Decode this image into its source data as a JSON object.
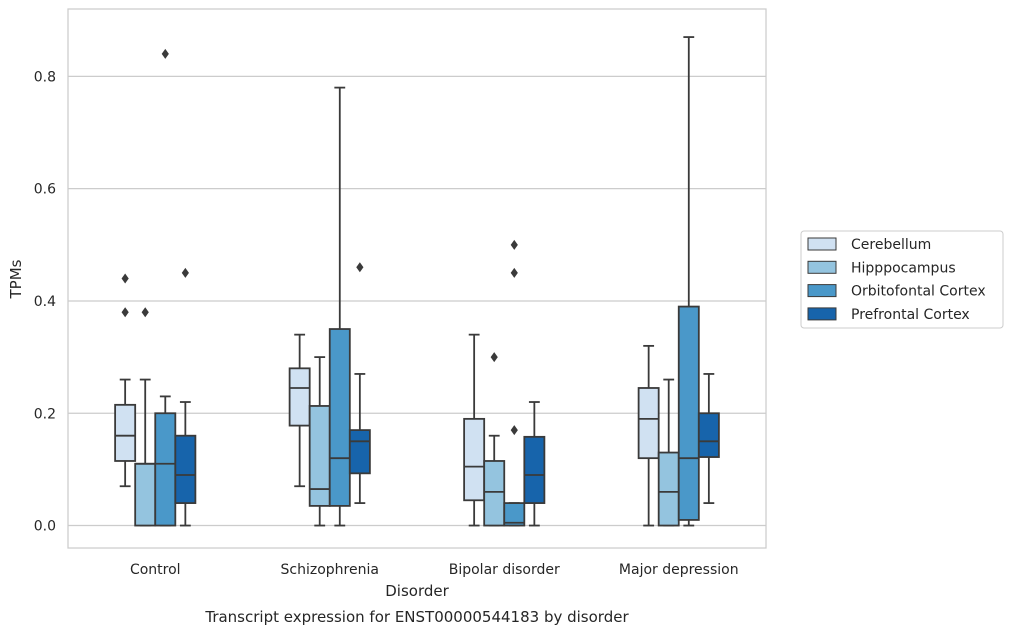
{
  "chart_data": {
    "type": "boxplot",
    "caption": "Transcript expression for ENST00000544183 by disorder",
    "xlabel": "Disorder",
    "ylabel": "TPMs",
    "ylim": [
      -0.04,
      0.92
    ],
    "yticks": [
      0.0,
      0.2,
      0.4,
      0.6,
      0.8
    ],
    "ytick_labels": [
      "0.0",
      "0.2",
      "0.4",
      "0.6",
      "0.8"
    ],
    "grid": "horizontal",
    "legend_position": "right",
    "categories": [
      "Control",
      "Schizophrenia",
      "Bipolar disorder",
      "Major depression"
    ],
    "series": [
      {
        "name": "Cerebellum",
        "color": "#d0e1f2",
        "boxes": [
          {
            "whisker_low": 0.07,
            "q1": 0.115,
            "median": 0.16,
            "q3": 0.215,
            "whisker_high": 0.26,
            "outliers": [
              0.38,
              0.44
            ]
          },
          {
            "whisker_low": 0.07,
            "q1": 0.178,
            "median": 0.245,
            "q3": 0.28,
            "whisker_high": 0.34,
            "outliers": []
          },
          {
            "whisker_low": 0.0,
            "q1": 0.045,
            "median": 0.105,
            "q3": 0.19,
            "whisker_high": 0.34,
            "outliers": []
          },
          {
            "whisker_low": 0.0,
            "q1": 0.12,
            "median": 0.19,
            "q3": 0.245,
            "whisker_high": 0.32,
            "outliers": []
          }
        ]
      },
      {
        "name": "Hipppocampus",
        "color": "#94c4df",
        "boxes": [
          {
            "whisker_low": 0.0,
            "q1": 0.0,
            "median": 0.11,
            "q3": 0.11,
            "whisker_high": 0.26,
            "outliers": [
              0.38
            ]
          },
          {
            "whisker_low": 0.0,
            "q1": 0.035,
            "median": 0.065,
            "q3": 0.213,
            "whisker_high": 0.3,
            "outliers": []
          },
          {
            "whisker_low": 0.0,
            "q1": 0.0,
            "median": 0.06,
            "q3": 0.115,
            "whisker_high": 0.16,
            "outliers": [
              0.3
            ]
          },
          {
            "whisker_low": 0.0,
            "q1": 0.0,
            "median": 0.06,
            "q3": 0.13,
            "whisker_high": 0.26,
            "outliers": []
          }
        ]
      },
      {
        "name": "Orbitofontal Cortex",
        "color": "#4a98c9",
        "boxes": [
          {
            "whisker_low": 0.0,
            "q1": 0.0,
            "median": 0.11,
            "q3": 0.2,
            "whisker_high": 0.23,
            "outliers": [
              0.84
            ]
          },
          {
            "whisker_low": 0.0,
            "q1": 0.035,
            "median": 0.12,
            "q3": 0.35,
            "whisker_high": 0.78,
            "outliers": []
          },
          {
            "whisker_low": 0.0,
            "q1": 0.0,
            "median": 0.005,
            "q3": 0.04,
            "whisker_high": 0.04,
            "outliers": [
              0.17,
              0.45,
              0.5
            ]
          },
          {
            "whisker_low": 0.0,
            "q1": 0.01,
            "median": 0.12,
            "q3": 0.39,
            "whisker_high": 0.87,
            "outliers": []
          }
        ]
      },
      {
        "name": "Prefrontal Cortex",
        "color": "#1764ab",
        "boxes": [
          {
            "whisker_low": 0.0,
            "q1": 0.04,
            "median": 0.09,
            "q3": 0.16,
            "whisker_high": 0.22,
            "outliers": [
              0.45
            ]
          },
          {
            "whisker_low": 0.04,
            "q1": 0.093,
            "median": 0.15,
            "q3": 0.17,
            "whisker_high": 0.27,
            "outliers": [
              0.46
            ]
          },
          {
            "whisker_low": 0.0,
            "q1": 0.04,
            "median": 0.09,
            "q3": 0.158,
            "whisker_high": 0.22,
            "outliers": []
          },
          {
            "whisker_low": 0.04,
            "q1": 0.122,
            "median": 0.15,
            "q3": 0.2,
            "whisker_high": 0.27,
            "outliers": []
          }
        ]
      }
    ]
  }
}
